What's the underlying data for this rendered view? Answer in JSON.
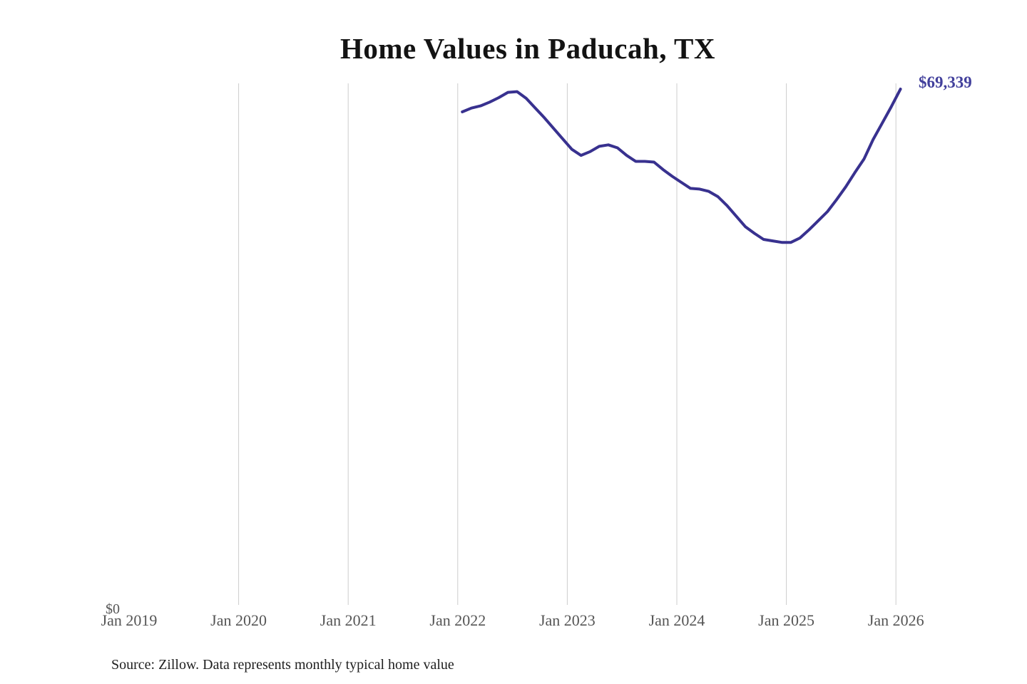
{
  "chart": {
    "title": "Home Values in Paducah, TX",
    "latest_value_label": "$69,339",
    "source_note": "Source: Zillow. Data represents monthly typical home value",
    "y_axis": {
      "zero_label": "$0"
    },
    "x_axis": {
      "tick_labels": [
        "Jan 2019",
        "Jan 2020",
        "Jan 2021",
        "Jan 2022",
        "Jan 2023",
        "Jan 2024",
        "Jan 2025",
        "Jan 2026"
      ]
    },
    "colors": {
      "line": "#38318f",
      "value_label": "#42409c",
      "gridline": "#cccccc",
      "axis_text": "#555555",
      "title_text": "#131313",
      "source_text": "#1f1f1f"
    }
  },
  "chart_data": {
    "type": "line",
    "title": "Home Values in Paducah, TX",
    "series_name": "Monthly typical home value (USD)",
    "x_tick_labels": [
      "Jan 2019",
      "Jan 2020",
      "Jan 2021",
      "Jan 2022",
      "Jan 2023",
      "Jan 2024",
      "Jan 2025",
      "Jan 2026"
    ],
    "x_range_years": [
      2019,
      2026
    ],
    "y_min": 0,
    "latest_point": {
      "month": "2026-01",
      "value": 69339
    },
    "grid": "vertical gridlines at each January, Jan 2020 through Jan 2026",
    "legend": "none",
    "x": [
      "2022-01",
      "2022-02",
      "2022-03",
      "2022-04",
      "2022-05",
      "2022-06",
      "2022-07",
      "2022-08",
      "2022-09",
      "2022-10",
      "2022-11",
      "2022-12",
      "2023-01",
      "2023-02",
      "2023-03",
      "2023-04",
      "2023-05",
      "2023-06",
      "2023-07",
      "2023-08",
      "2023-09",
      "2023-10",
      "2023-11",
      "2023-12",
      "2024-01",
      "2024-02",
      "2024-03",
      "2024-04",
      "2024-05",
      "2024-06",
      "2024-07",
      "2024-08",
      "2024-09",
      "2024-10",
      "2024-11",
      "2024-12",
      "2025-01",
      "2025-02",
      "2025-03",
      "2025-04",
      "2025-05",
      "2025-06",
      "2025-07",
      "2025-08",
      "2025-09",
      "2025-10",
      "2025-11",
      "2025-12",
      "2026-01"
    ],
    "values": [
      66300,
      66800,
      67100,
      67600,
      68200,
      68900,
      69000,
      68100,
      66800,
      65500,
      64100,
      62700,
      61300,
      60500,
      61000,
      61700,
      61900,
      61500,
      60500,
      59700,
      59700,
      59600,
      58600,
      57700,
      56900,
      56100,
      56000,
      55700,
      55000,
      53800,
      52400,
      51000,
      50100,
      49300,
      49100,
      48900,
      48900,
      49500,
      50600,
      51800,
      53000,
      54600,
      56300,
      58200,
      60000,
      62600,
      64800,
      67000,
      69339
    ]
  }
}
